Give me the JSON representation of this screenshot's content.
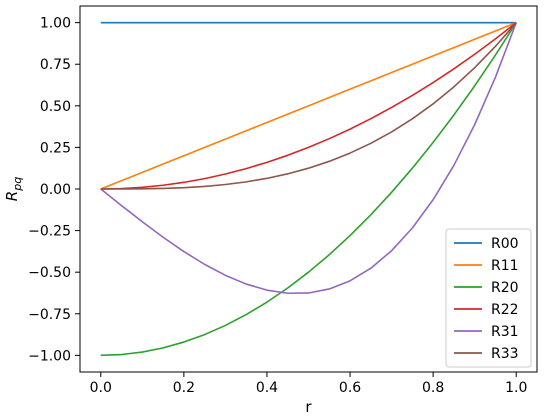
{
  "chart_data": {
    "type": "line",
    "title": "",
    "xlabel": "r",
    "ylabel": "R_pq",
    "xlim": [
      -0.05,
      1.05
    ],
    "ylim": [
      -1.1,
      1.1
    ],
    "x_ticks": [
      0.0,
      0.2,
      0.4,
      0.6,
      0.8,
      1.0
    ],
    "x_tick_labels": [
      "0.0",
      "0.2",
      "0.4",
      "0.6",
      "0.8",
      "1.0"
    ],
    "y_ticks": [
      1.0,
      0.75,
      0.5,
      0.25,
      0.0,
      -0.25,
      -0.5,
      -0.75,
      -1.0
    ],
    "y_tick_labels": [
      "1.00",
      "0.75",
      "0.50",
      "0.25",
      "0.00",
      "−0.25",
      "−0.50",
      "−0.75",
      "−1.00"
    ],
    "grid": false,
    "legend_position": "lower-right",
    "x": [
      0.0,
      0.05,
      0.1,
      0.15,
      0.2,
      0.25,
      0.3,
      0.35,
      0.4,
      0.45,
      0.5,
      0.55,
      0.6,
      0.65,
      0.7,
      0.75,
      0.8,
      0.85,
      0.9,
      0.95,
      1.0
    ],
    "series": [
      {
        "name": "R00",
        "color": "#1f77b4",
        "values": [
          1.0,
          1.0,
          1.0,
          1.0,
          1.0,
          1.0,
          1.0,
          1.0,
          1.0,
          1.0,
          1.0,
          1.0,
          1.0,
          1.0,
          1.0,
          1.0,
          1.0,
          1.0,
          1.0,
          1.0,
          1.0
        ]
      },
      {
        "name": "R11",
        "color": "#ff7f0e",
        "values": [
          0.0,
          0.05,
          0.1,
          0.15,
          0.2,
          0.25,
          0.3,
          0.35,
          0.4,
          0.45,
          0.5,
          0.55,
          0.6,
          0.65,
          0.7,
          0.75,
          0.8,
          0.85,
          0.9,
          0.95,
          1.0
        ]
      },
      {
        "name": "R20",
        "color": "#2ca02c",
        "values": [
          -1.0,
          -0.995,
          -0.98,
          -0.955,
          -0.92,
          -0.875,
          -0.82,
          -0.755,
          -0.68,
          -0.595,
          -0.5,
          -0.395,
          -0.28,
          -0.155,
          -0.02,
          0.125,
          0.28,
          0.445,
          0.62,
          0.805,
          1.0
        ]
      },
      {
        "name": "R22",
        "color": "#d62728",
        "values": [
          0.0,
          0.0025,
          0.01,
          0.0225,
          0.04,
          0.0625,
          0.09,
          0.1225,
          0.16,
          0.2025,
          0.25,
          0.3025,
          0.36,
          0.4225,
          0.49,
          0.5625,
          0.64,
          0.7225,
          0.81,
          0.9025,
          1.0
        ]
      },
      {
        "name": "R31",
        "color": "#9467bd",
        "values": [
          0.0,
          -0.0996,
          -0.197,
          -0.2899,
          -0.376,
          -0.4531,
          -0.519,
          -0.5714,
          -0.608,
          -0.6266,
          -0.625,
          -0.6009,
          -0.552,
          -0.4761,
          -0.371,
          -0.2344,
          -0.064,
          0.1424,
          0.387,
          0.6721,
          1.0
        ]
      },
      {
        "name": "R33",
        "color": "#8c564b",
        "values": [
          0.0,
          0.0001,
          0.001,
          0.0034,
          0.008,
          0.0156,
          0.027,
          0.0429,
          0.064,
          0.0911,
          0.125,
          0.1664,
          0.216,
          0.2746,
          0.343,
          0.4219,
          0.512,
          0.6141,
          0.729,
          0.8574,
          1.0
        ]
      }
    ]
  }
}
